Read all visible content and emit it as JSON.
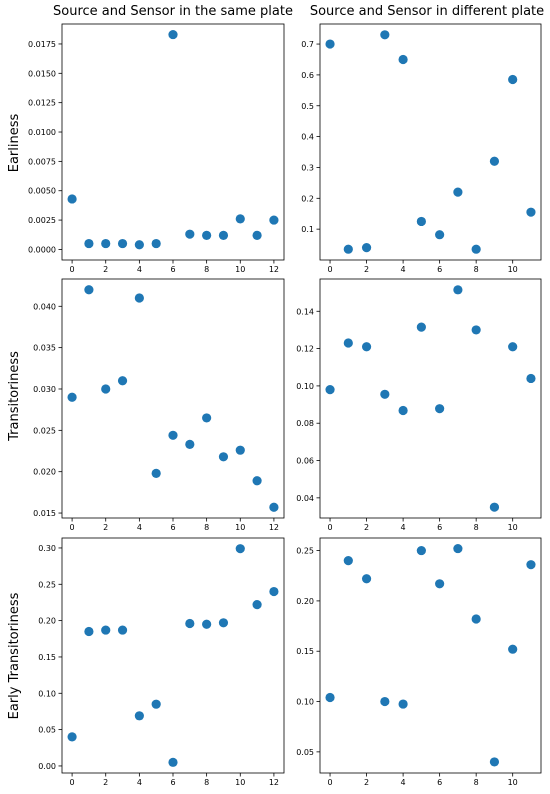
{
  "column_titles": [
    "Source and Sensor in the same plate",
    "Source and Sensor in different plate"
  ],
  "row_labels": [
    "Earliness",
    "Transitoriness",
    "Early Transitoriness"
  ],
  "colors": {
    "marker": "#1f77b4"
  },
  "chart_data": [
    {
      "type": "scatter",
      "row": 0,
      "col": 0,
      "ylabel": "Earliness",
      "title": "Source and Sensor in the same plate",
      "x": [
        0,
        1,
        2,
        3,
        4,
        5,
        6,
        7,
        8,
        9,
        10,
        11,
        12
      ],
      "y": [
        0.0043,
        0.0005,
        0.0005,
        0.0005,
        0.0004,
        0.0005,
        0.0183,
        0.0013,
        0.0012,
        0.0012,
        0.0026,
        0.0012,
        0.0025
      ],
      "xlim": [
        -0.6,
        12.6
      ],
      "ylim": [
        -0.0009,
        0.0192
      ],
      "xticks": [
        0,
        2,
        4,
        6,
        8,
        10,
        12
      ],
      "xticklabels": [
        "0",
        "2",
        "4",
        "6",
        "8",
        "10",
        "12"
      ],
      "yticks": [
        0,
        0.0025,
        0.005,
        0.0075,
        0.01,
        0.0125,
        0.015,
        0.0175
      ],
      "yticklabels": [
        "0.0000",
        "0.0025",
        "0.0050",
        "0.0075",
        "0.0100",
        "0.0125",
        "0.0150",
        "0.0175"
      ]
    },
    {
      "type": "scatter",
      "row": 0,
      "col": 1,
      "title": "Source and Sensor in different plate",
      "x": [
        0,
        1,
        2,
        3,
        4,
        5,
        6,
        7,
        8,
        9,
        10,
        11
      ],
      "y": [
        0.7,
        0.035,
        0.04,
        0.73,
        0.65,
        0.125,
        0.082,
        0.22,
        0.035,
        0.32,
        0.585,
        0.155
      ],
      "xlim": [
        -0.55,
        11.55
      ],
      "ylim": [
        0.0,
        0.765
      ],
      "xticks": [
        0,
        2,
        4,
        6,
        8,
        10
      ],
      "xticklabels": [
        "0",
        "2",
        "4",
        "6",
        "8",
        "10"
      ],
      "yticks": [
        0.1,
        0.2,
        0.3,
        0.4,
        0.5,
        0.6,
        0.7
      ],
      "yticklabels": [
        "0.1",
        "0.2",
        "0.3",
        "0.4",
        "0.5",
        "0.6",
        "0.7"
      ]
    },
    {
      "type": "scatter",
      "row": 1,
      "col": 0,
      "ylabel": "Transitoriness",
      "x": [
        0,
        1,
        2,
        3,
        4,
        5,
        6,
        7,
        8,
        9,
        10,
        11,
        12
      ],
      "y": [
        0.029,
        0.042,
        0.03,
        0.031,
        0.041,
        0.0198,
        0.0244,
        0.0233,
        0.0265,
        0.0218,
        0.0226,
        0.0189,
        0.0157
      ],
      "xlim": [
        -0.6,
        12.6
      ],
      "ylim": [
        0.0144,
        0.0433
      ],
      "xticks": [
        0,
        2,
        4,
        6,
        8,
        10,
        12
      ],
      "xticklabels": [
        "0",
        "2",
        "4",
        "6",
        "8",
        "10",
        "12"
      ],
      "yticks": [
        0.015,
        0.02,
        0.025,
        0.03,
        0.035,
        0.04
      ],
      "yticklabels": [
        "0.015",
        "0.020",
        "0.025",
        "0.030",
        "0.035",
        "0.040"
      ]
    },
    {
      "type": "scatter",
      "row": 1,
      "col": 1,
      "x": [
        0,
        1,
        2,
        3,
        4,
        5,
        6,
        7,
        8,
        9,
        10,
        11
      ],
      "y": [
        0.098,
        0.123,
        0.121,
        0.0955,
        0.0868,
        0.1315,
        0.0878,
        0.1515,
        0.13,
        0.035,
        0.121,
        0.104
      ],
      "xlim": [
        -0.55,
        11.55
      ],
      "ylim": [
        0.0292,
        0.1573
      ],
      "xticks": [
        0,
        2,
        4,
        6,
        8,
        10
      ],
      "xticklabels": [
        "0",
        "2",
        "4",
        "6",
        "8",
        "10"
      ],
      "yticks": [
        0.04,
        0.06,
        0.08,
        0.1,
        0.12,
        0.14
      ],
      "yticklabels": [
        "0.04",
        "0.06",
        "0.08",
        "0.10",
        "0.12",
        "0.14"
      ]
    },
    {
      "type": "scatter",
      "row": 2,
      "col": 0,
      "ylabel": "Early Transitoriness",
      "x": [
        0,
        1,
        2,
        3,
        4,
        5,
        6,
        7,
        8,
        9,
        10,
        11,
        12
      ],
      "y": [
        0.04,
        0.185,
        0.187,
        0.187,
        0.069,
        0.085,
        0.005,
        0.196,
        0.195,
        0.197,
        0.299,
        0.222,
        0.24
      ],
      "xlim": [
        -0.6,
        12.6
      ],
      "ylim": [
        -0.0097,
        0.3137
      ],
      "xticks": [
        0,
        2,
        4,
        6,
        8,
        10,
        12
      ],
      "xticklabels": [
        "0",
        "2",
        "4",
        "6",
        "8",
        "10",
        "12"
      ],
      "yticks": [
        0,
        0.05,
        0.1,
        0.15,
        0.2,
        0.25,
        0.3
      ],
      "yticklabels": [
        "0.00",
        "0.05",
        "0.10",
        "0.15",
        "0.20",
        "0.25",
        "0.30"
      ]
    },
    {
      "type": "scatter",
      "row": 2,
      "col": 1,
      "x": [
        0,
        1,
        2,
        3,
        4,
        5,
        6,
        7,
        8,
        9,
        10,
        11
      ],
      "y": [
        0.104,
        0.24,
        0.222,
        0.1,
        0.0975,
        0.25,
        0.217,
        0.252,
        0.182,
        0.04,
        0.152,
        0.236
      ],
      "xlim": [
        -0.55,
        11.55
      ],
      "ylim": [
        0.029,
        0.2625
      ],
      "xticks": [
        0,
        2,
        4,
        6,
        8,
        10
      ],
      "xticklabels": [
        "0",
        "2",
        "4",
        "6",
        "8",
        "10"
      ],
      "yticks": [
        0.05,
        0.1,
        0.15,
        0.2,
        0.25
      ],
      "yticklabels": [
        "0.05",
        "0.10",
        "0.15",
        "0.20",
        "0.25"
      ]
    }
  ]
}
